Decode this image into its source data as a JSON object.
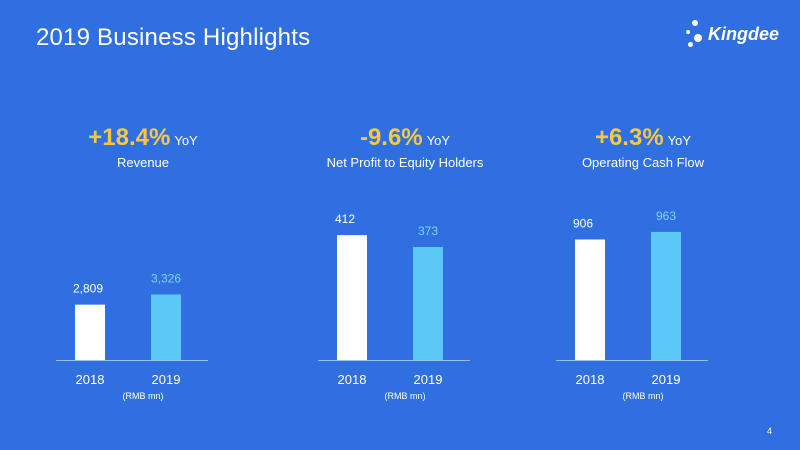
{
  "title": "2019 Business Highlights",
  "logo": {
    "text": "Kingdee",
    "icon": "kingdee-dots-logo"
  },
  "page_number": "4",
  "colors": {
    "background": "#2f6fe0",
    "bar_2018": "#ffffff",
    "bar_2019": "#5cc8f8",
    "label_2019": "#7fd4ff",
    "highlight": "#f7c843",
    "axis": "#9fb9ea"
  },
  "chart_data": [
    {
      "type": "bar",
      "headline_value": "+18.4%",
      "headline_suffix": "YoY",
      "title": "Revenue",
      "categories": [
        "2018",
        "2019"
      ],
      "values": [
        2809,
        3326
      ],
      "value_labels": [
        "2,809",
        "3,326"
      ],
      "unit": "(RMB mn)"
    },
    {
      "type": "bar",
      "headline_value": "-9.6%",
      "headline_suffix": "YoY",
      "title": "Net Profit to Equity Holders",
      "categories": [
        "2018",
        "2019"
      ],
      "values": [
        412,
        373
      ],
      "value_labels": [
        "412",
        "373"
      ],
      "unit": "(RMB mn)"
    },
    {
      "type": "bar",
      "headline_value": "+6.3%",
      "headline_suffix": "YoY",
      "title": "Operating  Cash Flow",
      "categories": [
        "2018",
        "2019"
      ],
      "values": [
        906,
        963
      ],
      "value_labels": [
        "906",
        "963"
      ],
      "unit": "(RMB mn)"
    }
  ]
}
